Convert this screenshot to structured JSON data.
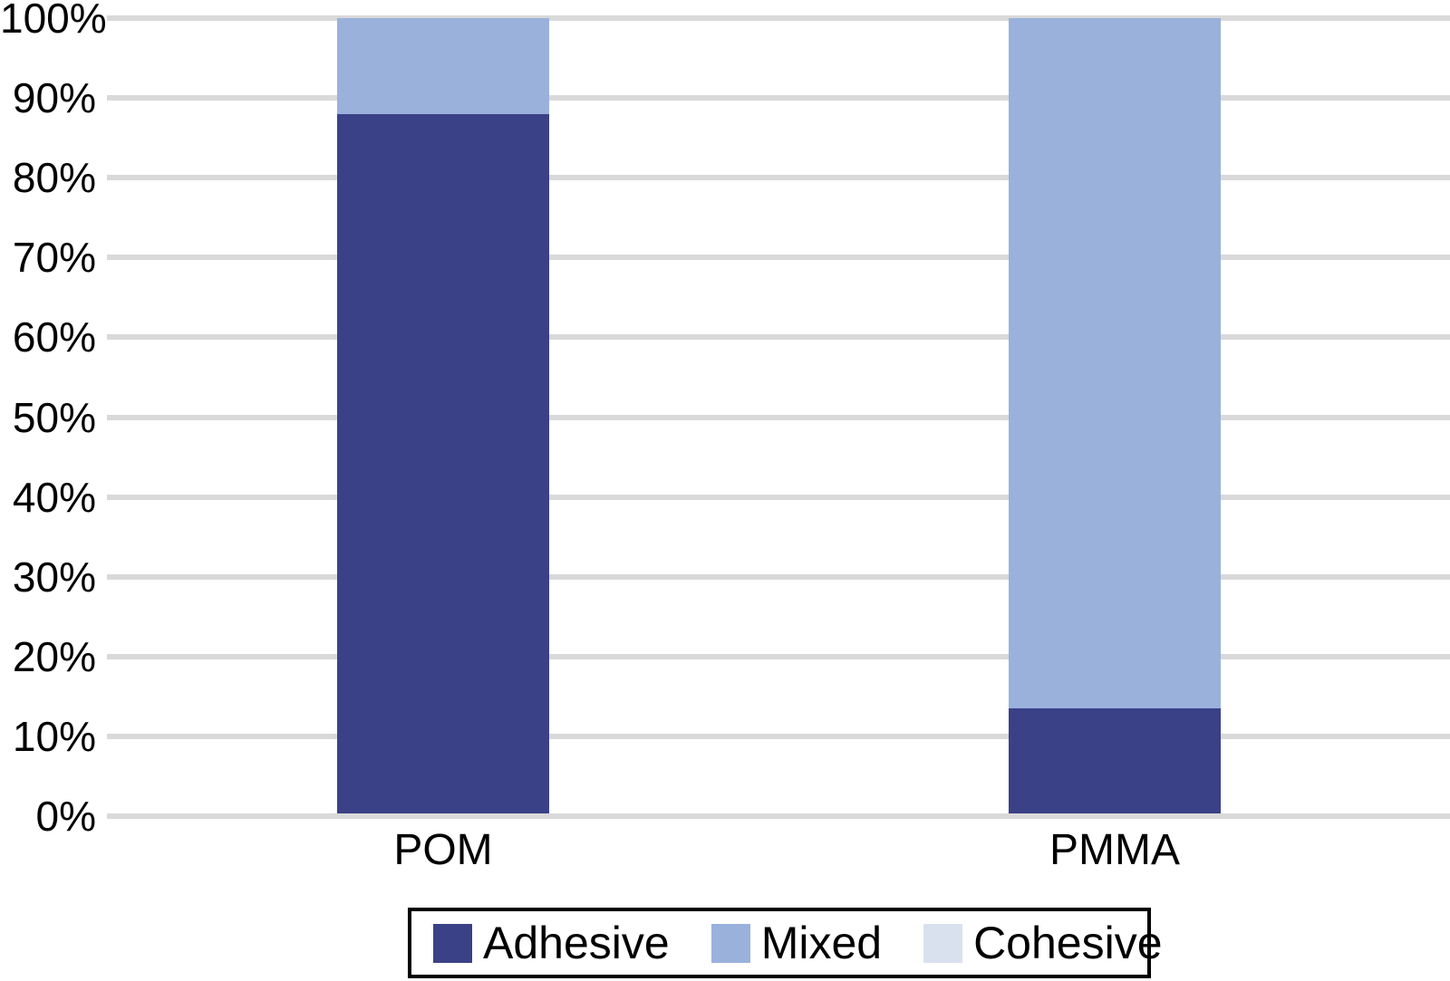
{
  "chart_data": {
    "type": "bar",
    "subtype": "stacked-100-percent-column",
    "title": "",
    "xlabel": "",
    "ylabel": "",
    "categories": [
      "POM",
      "PMMA"
    ],
    "series": [
      {
        "name": "Adhesive",
        "color": "#3a4187",
        "values": [
          88,
          13.5
        ]
      },
      {
        "name": "Mixed",
        "color": "#9ab1dc",
        "values": [
          12,
          86.5
        ]
      },
      {
        "name": "Cohesive",
        "color": "#d9e1ef",
        "values": [
          0,
          0
        ]
      }
    ],
    "y_ticks": [
      "0%",
      "10%",
      "20%",
      "30%",
      "40%",
      "50%",
      "60%",
      "70%",
      "80%",
      "90%",
      "100%"
    ],
    "ylim": [
      0,
      100
    ],
    "grid": true,
    "legend_position": "bottom",
    "legend_entries": [
      "Adhesive",
      "Mixed",
      "Cohesive"
    ]
  },
  "colors": {
    "gridline": "#d9d9d9",
    "text": "#000000",
    "legend_border": "#000000",
    "background": "#ffffff"
  }
}
